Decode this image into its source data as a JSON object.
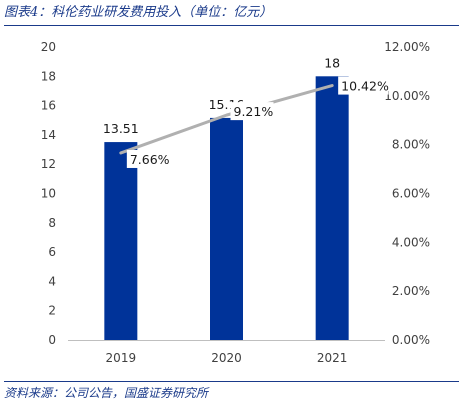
{
  "caption": "图表4：科伦药业研发费用投入（单位：亿元）",
  "source": "资料来源：公司公告，国盛证券研究所",
  "colors": {
    "bar": "#003399",
    "line": "#b0b0b0",
    "caption": "#1a3a8a"
  },
  "chart_data": {
    "type": "bar",
    "categories": [
      "2019",
      "2020",
      "2021"
    ],
    "series": [
      {
        "values": [
          13.51,
          15.16,
          18
        ],
        "axis": "left",
        "kind": "bar"
      },
      {
        "values": [
          7.66,
          9.21,
          10.42
        ],
        "axis": "right",
        "kind": "line",
        "unit": "%"
      }
    ],
    "bar_labels": [
      "13.51",
      "15.16",
      "18"
    ],
    "line_labels": [
      "7.66%",
      "9.21%",
      "10.42%"
    ],
    "ylim": [
      0,
      20
    ],
    "yticks": [
      "0",
      "2",
      "4",
      "6",
      "8",
      "10",
      "12",
      "14",
      "16",
      "18",
      "20"
    ],
    "y2lim": [
      0,
      12
    ],
    "y2ticks": [
      "0.00%",
      "2.00%",
      "4.00%",
      "6.00%",
      "8.00%",
      "10.00%",
      "12.00%"
    ],
    "legend": "none",
    "grid": false
  }
}
